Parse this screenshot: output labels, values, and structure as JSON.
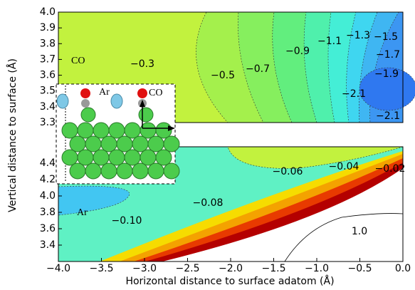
{
  "chart_data": [
    {
      "type": "contour",
      "ylabel": "Vertical distance to surface (Å)",
      "ylim": [
        3.3,
        4.0
      ],
      "yticks": [
        3.3,
        3.4,
        3.5,
        3.6,
        3.7,
        3.8,
        3.9,
        {
          "value": 4.0,
          "label": "4.0"
        }
      ],
      "panel_label": "CO",
      "contour_labels": [
        "−0.3",
        "−0.5",
        "−0.7",
        "−0.9",
        "−1.1",
        "−1.3",
        "−1.5",
        "−1.7",
        "−1.9",
        "−2.1",
        "−2.1"
      ],
      "inset_labels": [
        "Ar",
        "CO"
      ]
    },
    {
      "type": "contour",
      "xlabel": "Horizontal distance to surface adatom (Å)",
      "xlim": [
        -4.0,
        0.0
      ],
      "xticks": [
        {
          "value": -4.0,
          "label": "−4.0"
        },
        {
          "value": -3.5,
          "label": "−3.5"
        },
        {
          "value": -3.0,
          "label": "−3.0"
        },
        {
          "value": -2.5,
          "label": "−2.5"
        },
        {
          "value": -2.0,
          "label": "−2.0"
        },
        {
          "value": -1.5,
          "label": "−1.5"
        },
        {
          "value": -1.0,
          "label": "−1.0"
        },
        {
          "value": -0.5,
          "label": "−0.5"
        },
        {
          "value": 0.0,
          "label": "0.0"
        }
      ],
      "ylim": [
        3.2,
        4.6
      ],
      "yticks": [
        3.4,
        3.6,
        3.8,
        {
          "value": 4.0,
          "label": "4.0"
        },
        4.2,
        4.4
      ],
      "panel_label": "Ar",
      "contour_labels": [
        "−0.06",
        "−0.04",
        "−0.02",
        "−0.08",
        "−0.10",
        "1.0"
      ]
    }
  ]
}
